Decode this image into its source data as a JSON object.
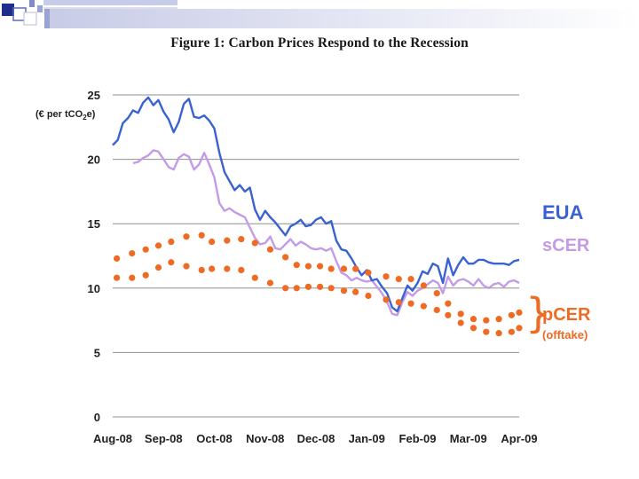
{
  "chart_data": {
    "type": "line",
    "title": "Figure 1:  Carbon Prices Respond to the Recession",
    "ylabel": "(€ per tCO2e)",
    "ylabel_parts": [
      "(€ per tCO",
      "2",
      "e)"
    ],
    "xlabel": "",
    "ylim": [
      0,
      25
    ],
    "yticks": [
      0,
      5,
      10,
      15,
      20,
      25
    ],
    "xlim": [
      0,
      8
    ],
    "categories": [
      "Aug-08",
      "Sep-08",
      "Oct-08",
      "Nov-08",
      "Dec-08",
      "Jan-09",
      "Feb-09",
      "Mar-09",
      "Apr-09"
    ],
    "grid": "horizontal",
    "legend": "right",
    "pcer_bracket": "}",
    "series": [
      {
        "name": "EUA",
        "kind": "line",
        "color": "#3a62d0",
        "x": [
          0,
          0.1,
          0.2,
          0.3,
          0.4,
          0.5,
          0.6,
          0.7,
          0.8,
          0.9,
          1.0,
          1.1,
          1.2,
          1.3,
          1.4,
          1.5,
          1.6,
          1.7,
          1.8,
          1.9,
          2.0,
          2.1,
          2.2,
          2.3,
          2.4,
          2.5,
          2.6,
          2.7,
          2.8,
          2.9,
          3.0,
          3.1,
          3.2,
          3.3,
          3.4,
          3.5,
          3.6,
          3.7,
          3.8,
          3.9,
          4.0,
          4.1,
          4.2,
          4.3,
          4.4,
          4.5,
          4.6,
          4.7,
          4.8,
          4.9,
          5.0,
          5.1,
          5.2,
          5.3,
          5.4,
          5.5,
          5.6,
          5.7,
          5.8,
          5.9,
          6.0,
          6.1,
          6.2,
          6.3,
          6.4,
          6.5,
          6.6,
          6.7,
          6.8,
          6.9,
          7.0,
          7.1,
          7.2,
          7.3,
          7.4,
          7.5,
          7.6,
          7.7,
          7.8,
          7.9,
          8.0
        ],
        "values": [
          21.1,
          21.5,
          22.8,
          23.2,
          23.8,
          23.6,
          24.4,
          24.8,
          24.2,
          24.6,
          23.7,
          23.1,
          22.1,
          22.9,
          24.3,
          24.7,
          23.3,
          23.2,
          23.4,
          23.0,
          22.4,
          20.5,
          19.0,
          18.3,
          17.6,
          18.0,
          17.5,
          17.8,
          16.1,
          15.3,
          16.0,
          15.5,
          15.1,
          14.6,
          14.1,
          14.8,
          15.0,
          15.3,
          14.8,
          14.9,
          15.3,
          15.5,
          15.0,
          15.2,
          13.7,
          13.0,
          12.9,
          12.3,
          11.6,
          11.0,
          11.4,
          10.6,
          10.7,
          10.1,
          9.6,
          8.5,
          8.2,
          9.2,
          10.2,
          9.8,
          10.4,
          11.3,
          11.1,
          11.9,
          11.7,
          10.4,
          12.3,
          11.0,
          11.8,
          12.4,
          11.9,
          11.9,
          12.2,
          12.2,
          12.0,
          11.9,
          11.9,
          11.9,
          11.8,
          12.1,
          12.2
        ]
      },
      {
        "name": "sCER",
        "kind": "line",
        "color": "#c39be6",
        "x": [
          0.4,
          0.5,
          0.6,
          0.7,
          0.8,
          0.9,
          1.0,
          1.1,
          1.2,
          1.3,
          1.4,
          1.5,
          1.6,
          1.7,
          1.8,
          1.9,
          2.0,
          2.1,
          2.2,
          2.3,
          2.4,
          2.5,
          2.6,
          2.7,
          2.8,
          2.9,
          3.0,
          3.1,
          3.2,
          3.3,
          3.4,
          3.5,
          3.6,
          3.7,
          3.8,
          3.9,
          4.0,
          4.1,
          4.2,
          4.3,
          4.4,
          4.5,
          4.6,
          4.7,
          4.8,
          4.9,
          5.0,
          5.1,
          5.2,
          5.3,
          5.4,
          5.5,
          5.6,
          5.7,
          5.8,
          5.9,
          6.0,
          6.1,
          6.2,
          6.3,
          6.4,
          6.5,
          6.6,
          6.7,
          6.8,
          6.9,
          7.0,
          7.1,
          7.2,
          7.3,
          7.4,
          7.5,
          7.6,
          7.7,
          7.8,
          7.9,
          8.0
        ],
        "values": [
          19.7,
          19.8,
          20.1,
          20.3,
          20.7,
          20.6,
          20.0,
          19.4,
          19.2,
          20.1,
          20.4,
          20.2,
          19.2,
          19.6,
          20.5,
          19.6,
          18.6,
          16.6,
          16.0,
          16.2,
          15.9,
          15.7,
          15.5,
          14.7,
          13.9,
          13.4,
          13.5,
          14.0,
          13.1,
          13.0,
          13.4,
          13.8,
          13.3,
          13.6,
          13.4,
          13.1,
          13.0,
          13.1,
          12.9,
          13.1,
          12.1,
          11.2,
          11.0,
          10.6,
          10.8,
          10.6,
          10.5,
          10.6,
          10.1,
          9.6,
          8.9,
          8.0,
          7.9,
          8.9,
          9.7,
          9.4,
          9.8,
          10.0,
          10.3,
          10.6,
          10.4,
          9.6,
          10.9,
          10.2,
          10.6,
          10.7,
          10.5,
          10.2,
          10.7,
          10.2,
          10.0,
          10.3,
          10.4,
          10.1,
          10.5,
          10.6,
          10.4
        ]
      },
      {
        "name": "pCER",
        "sublabel": "(offtake)",
        "kind": "dots",
        "color": "#ef6a22",
        "upper": {
          "x": [
            0.08,
            0.38,
            0.65,
            0.9,
            1.15,
            1.45,
            1.75,
            1.95,
            2.25,
            2.53,
            2.8,
            3.1,
            3.4,
            3.62,
            3.85,
            4.08,
            4.3,
            4.55,
            4.78,
            5.03,
            5.38,
            5.63,
            5.87,
            6.12,
            6.38,
            6.6,
            6.85,
            7.1,
            7.35,
            7.6,
            7.85,
            8.0
          ],
          "values": [
            12.3,
            12.7,
            13.0,
            13.3,
            13.6,
            14.0,
            14.1,
            13.6,
            13.7,
            13.8,
            13.5,
            13.0,
            12.4,
            11.8,
            11.7,
            11.7,
            11.5,
            11.5,
            11.5,
            11.2,
            10.9,
            10.7,
            10.7,
            10.2,
            9.6,
            8.8,
            8.0,
            7.6,
            7.5,
            7.6,
            7.9,
            8.1
          ]
        },
        "lower": {
          "x": [
            0.08,
            0.38,
            0.65,
            0.9,
            1.15,
            1.45,
            1.75,
            1.95,
            2.25,
            2.53,
            2.8,
            3.1,
            3.4,
            3.62,
            3.85,
            4.08,
            4.3,
            4.55,
            4.78,
            5.03,
            5.38,
            5.63,
            5.87,
            6.12,
            6.38,
            6.6,
            6.85,
            7.1,
            7.35,
            7.6,
            7.85,
            8.0
          ],
          "values": [
            10.8,
            10.8,
            11.0,
            11.6,
            12.0,
            11.7,
            11.4,
            11.5,
            11.5,
            11.4,
            10.8,
            10.4,
            10.0,
            10.0,
            10.1,
            10.1,
            10.0,
            9.8,
            9.7,
            9.4,
            9.1,
            8.9,
            8.8,
            8.6,
            8.3,
            7.9,
            7.3,
            6.9,
            6.6,
            6.5,
            6.6,
            6.9
          ]
        }
      }
    ]
  }
}
